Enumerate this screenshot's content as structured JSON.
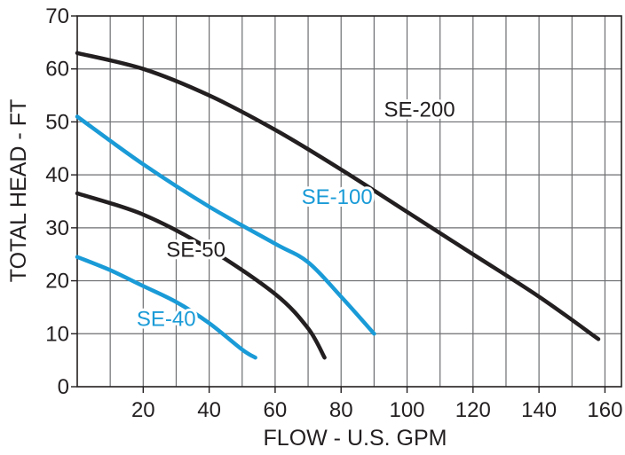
{
  "chart_data": {
    "type": "line",
    "title": "",
    "xlabel": "FLOW - U.S. GPM",
    "ylabel": "TOTAL HEAD - FT",
    "xlim": [
      0,
      165
    ],
    "ylim": [
      0,
      70
    ],
    "x_ticks": [
      20,
      40,
      60,
      80,
      100,
      120,
      140,
      160
    ],
    "y_ticks": [
      0,
      10,
      20,
      30,
      40,
      50,
      60,
      70
    ],
    "x_grid_step": 10,
    "y_grid_step": 10,
    "grid": true,
    "legend": "none",
    "series": [
      {
        "name": "SE-200",
        "color": "#231f20",
        "points": [
          [
            0,
            63
          ],
          [
            20,
            60
          ],
          [
            40,
            55
          ],
          [
            60,
            48.5
          ],
          [
            80,
            41
          ],
          [
            100,
            33
          ],
          [
            120,
            25
          ],
          [
            140,
            17
          ],
          [
            158,
            9
          ]
        ]
      },
      {
        "name": "SE-100",
        "color": "#1a9bd7",
        "points": [
          [
            0,
            51
          ],
          [
            20,
            42
          ],
          [
            40,
            34
          ],
          [
            60,
            27
          ],
          [
            70,
            23.5
          ],
          [
            80,
            17
          ],
          [
            90,
            10
          ]
        ]
      },
      {
        "name": "SE-50",
        "color": "#231f20",
        "points": [
          [
            0,
            36.5
          ],
          [
            20,
            32.5
          ],
          [
            40,
            26
          ],
          [
            60,
            17.5
          ],
          [
            70,
            11
          ],
          [
            75,
            5.5
          ]
        ]
      },
      {
        "name": "SE-40",
        "color": "#1a9bd7",
        "points": [
          [
            0,
            24.5
          ],
          [
            10,
            22
          ],
          [
            20,
            19
          ],
          [
            30,
            16
          ],
          [
            40,
            12
          ],
          [
            50,
            7
          ],
          [
            54,
            5.5
          ]
        ]
      }
    ],
    "annotations": [
      {
        "text": "SE-200",
        "x": 93,
        "y": 51,
        "color": "#231f20"
      },
      {
        "text": "SE-100",
        "x": 68,
        "y": 34.5,
        "color": "#1a9bd7"
      },
      {
        "text": "SE-50",
        "x": 27,
        "y": 24.5,
        "color": "#231f20"
      },
      {
        "text": "SE-40",
        "x": 18,
        "y": 11.5,
        "color": "#1a9bd7"
      }
    ]
  }
}
